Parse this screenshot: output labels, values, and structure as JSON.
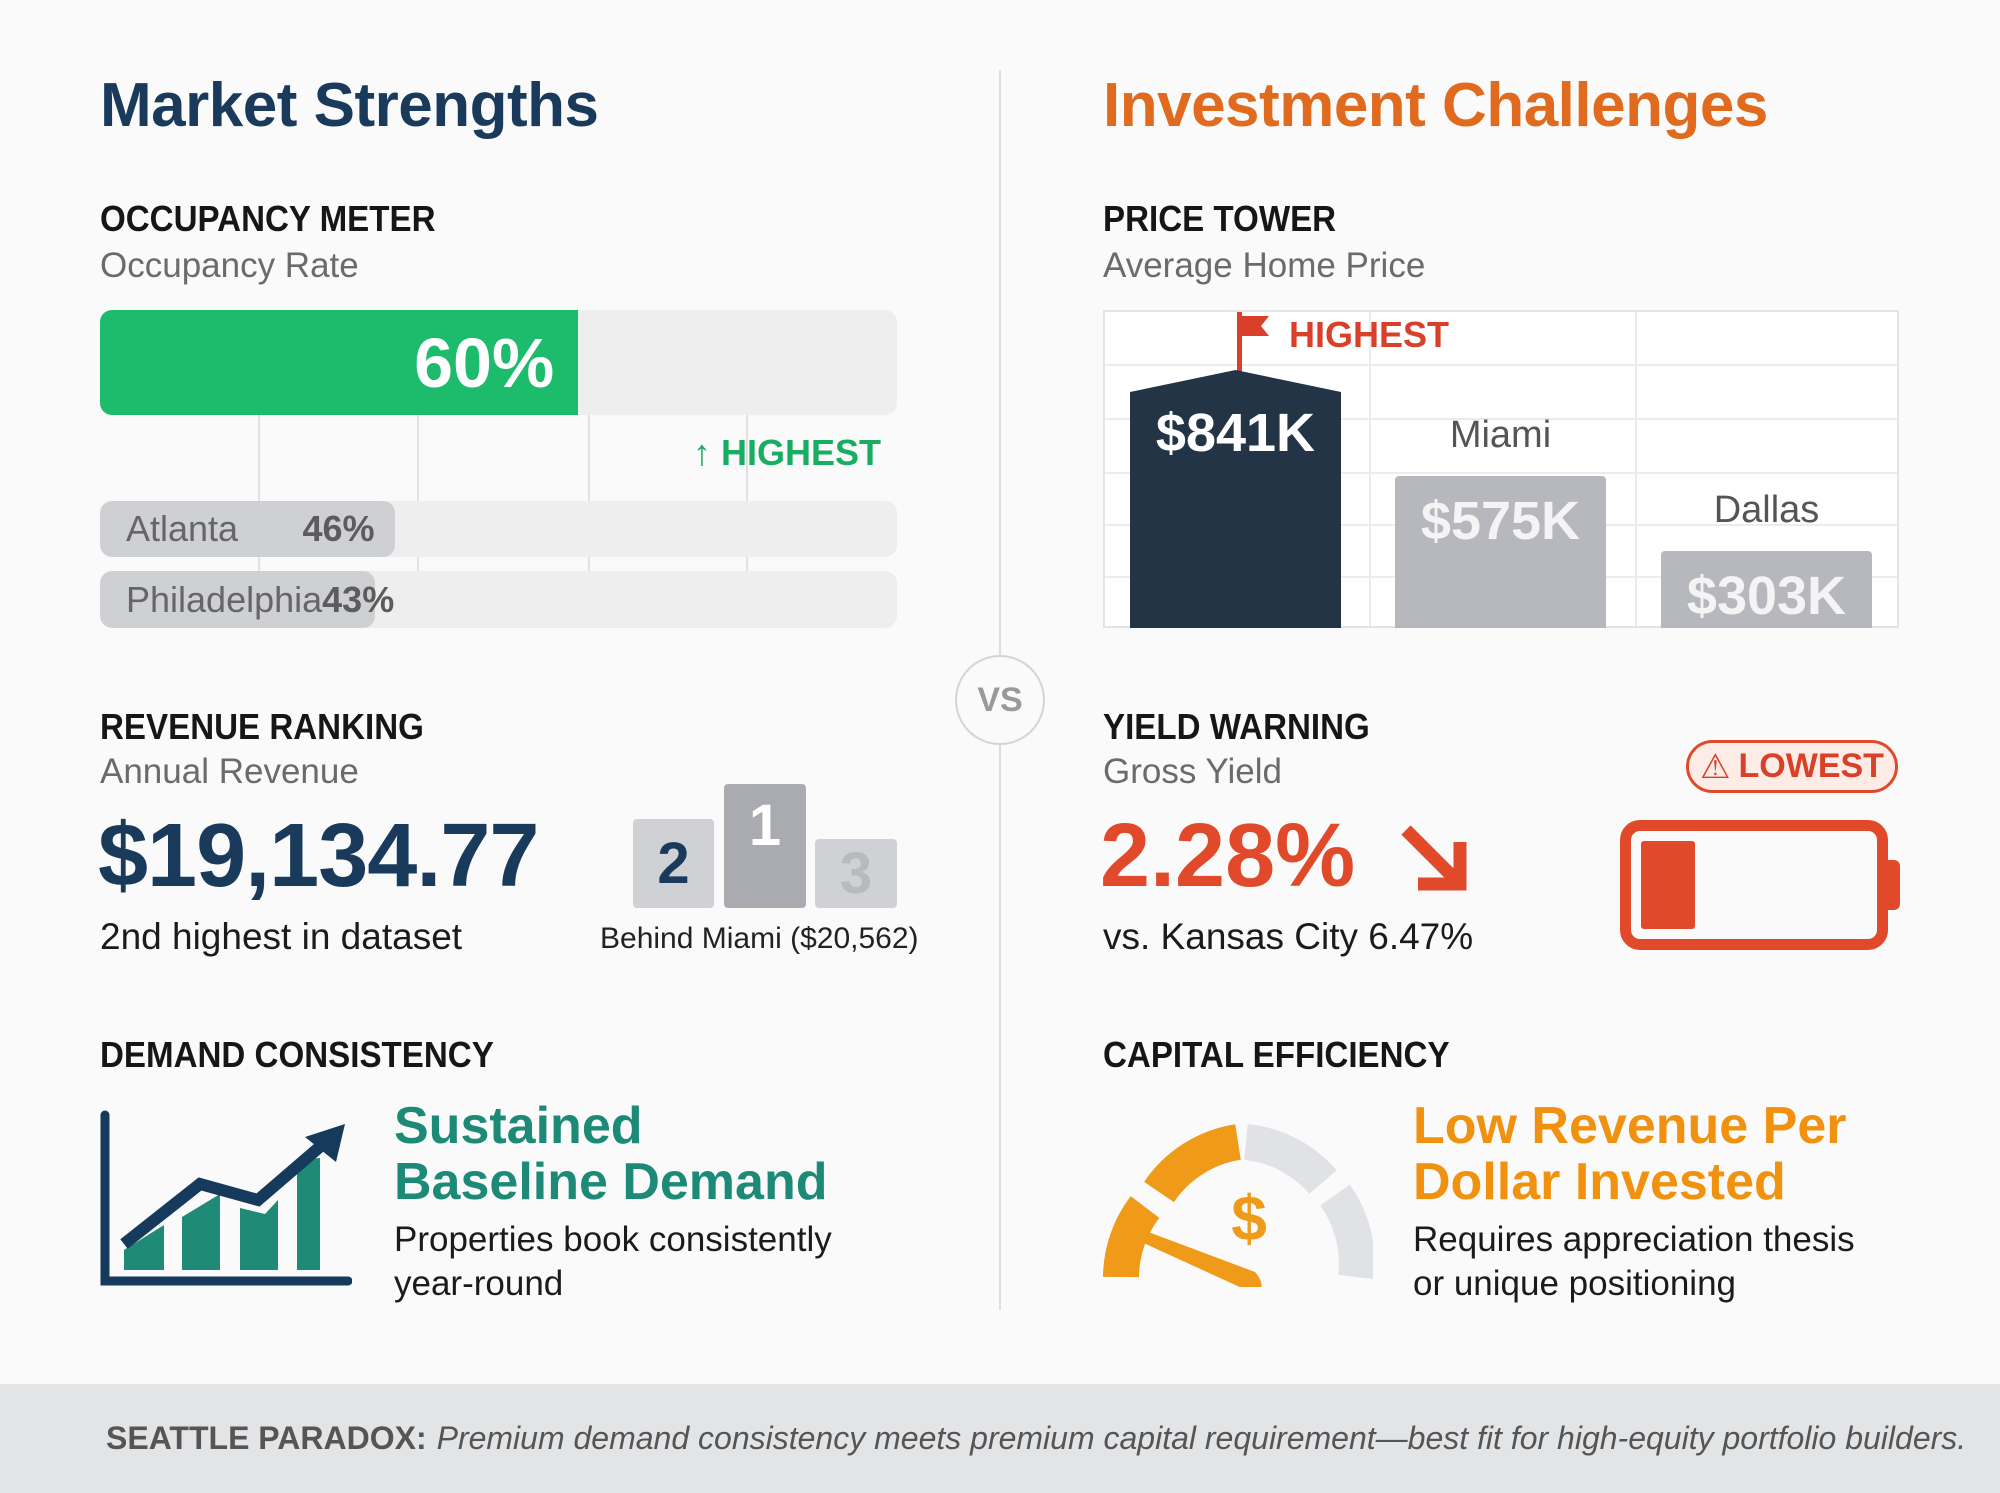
{
  "left": {
    "title": "Market Strengths",
    "color": "#1a3a5c",
    "occupancy": {
      "heading": "OCCUPANCY METER",
      "subtitle": "Occupancy Rate",
      "value": "60%",
      "value_pct": 60,
      "badge": "HIGHEST",
      "comparisons": [
        {
          "city": "Atlanta",
          "value": "46%",
          "pct": 46
        },
        {
          "city": "Philadelphia",
          "value": "43%",
          "pct": 43
        }
      ]
    },
    "revenue": {
      "heading": "REVENUE RANKING",
      "subtitle": "Annual Revenue",
      "value": "$19,134.77",
      "note": "2nd highest in dataset",
      "podium": [
        "2",
        "1",
        "3"
      ],
      "podium_note": "Behind Miami ($20,562)"
    },
    "demand": {
      "heading": "DEMAND CONSISTENCY",
      "headline_1": "Sustained",
      "headline_2": "Baseline Demand",
      "body_1": "Properties book consistently",
      "body_2": "year-round",
      "icon": "rising-bar-chart-icon"
    }
  },
  "vs": "VS",
  "right": {
    "title": "Investment Challenges",
    "color": "#e06a1e",
    "price": {
      "heading": "PRICE TOWER",
      "subtitle": "Average Home Price",
      "badge": "HIGHEST",
      "bars": [
        {
          "city": "",
          "value": "$841K",
          "amount": 841
        },
        {
          "city": "Miami",
          "value": "$575K",
          "amount": 575
        },
        {
          "city": "Dallas",
          "value": "$303K",
          "amount": 303
        }
      ]
    },
    "yield": {
      "heading": "YIELD WARNING",
      "subtitle": "Gross Yield",
      "value": "2.28%",
      "note": "vs. Kansas City 6.47%",
      "badge": "LOWEST",
      "battery_level_pct": 20
    },
    "capital": {
      "heading": "CAPITAL EFFICIENCY",
      "headline_1": "Low Revenue Per",
      "headline_2": "Dollar Invested",
      "body_1": "Requires appreciation thesis",
      "body_2": "or unique positioning",
      "icon": "dollar-gauge-icon"
    }
  },
  "footer": {
    "label": "SEATTLE PARADOX:",
    "text": "Premium demand consistency meets premium capital requirement—best fit for high-equity portfolio builders."
  }
}
